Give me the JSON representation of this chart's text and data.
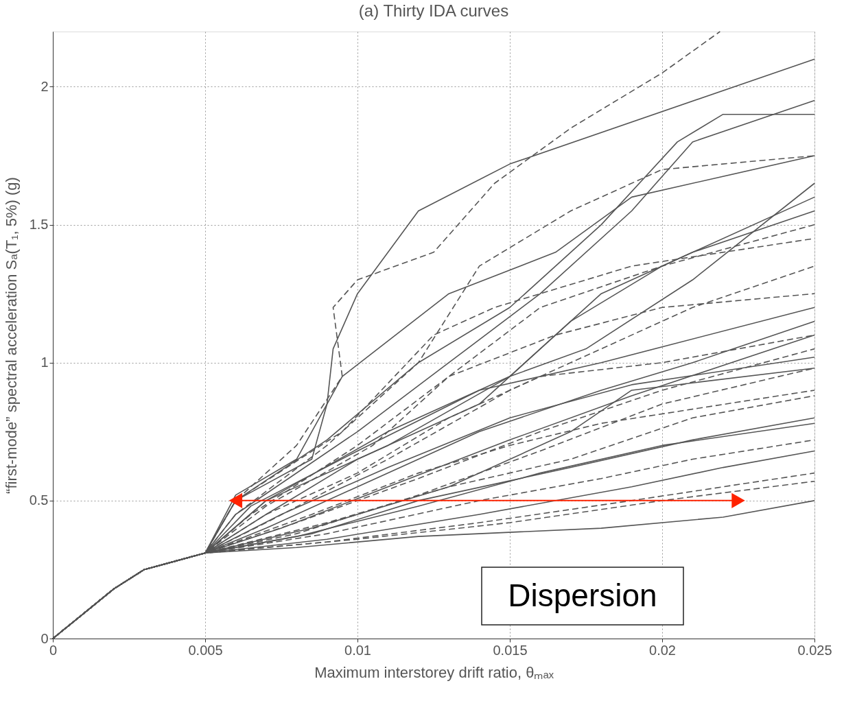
{
  "chart_data": {
    "type": "line",
    "title": "(a) Thirty IDA curves",
    "xlabel": "Maximum interstorey drift ratio, θₘₐₓ",
    "ylabel": "“first-mode” spectral acceleration Sₐ(T₁, 5%)  (g)",
    "xlim": [
      0,
      0.025
    ],
    "xticks": [
      0,
      0.005,
      0.01,
      0.015,
      0.02,
      0.025
    ],
    "ylim": [
      0,
      2.2
    ],
    "yticks": [
      0,
      0.5,
      1,
      1.5,
      2
    ],
    "grid": true,
    "annotations": [
      "Dispersion"
    ],
    "series": [
      {
        "color": "#555555",
        "line_style": "solid",
        "x": [
          0,
          0.001,
          0.002,
          0.003,
          0.004,
          0.005,
          0.006,
          0.0085,
          0.009,
          0.0092,
          0.01,
          0.012,
          0.015,
          0.025
        ],
        "values": [
          0,
          0.09,
          0.18,
          0.25,
          0.28,
          0.31,
          0.5,
          0.65,
          0.85,
          1.05,
          1.25,
          1.55,
          1.72,
          2.1
        ]
      },
      {
        "color": "#555555",
        "line_style": "dashed",
        "x": [
          0,
          0.001,
          0.002,
          0.003,
          0.004,
          0.005,
          0.006,
          0.008,
          0.0095,
          0.0092,
          0.01,
          0.0125,
          0.0145,
          0.017,
          0.02,
          0.0219
        ],
        "values": [
          0,
          0.09,
          0.18,
          0.25,
          0.28,
          0.31,
          0.5,
          0.7,
          0.95,
          1.2,
          1.3,
          1.4,
          1.65,
          1.85,
          2.05,
          2.2
        ]
      },
      {
        "color": "#555555",
        "line_style": "solid",
        "x": [
          0,
          0.001,
          0.002,
          0.003,
          0.004,
          0.005,
          0.006,
          0.01,
          0.013,
          0.016,
          0.019,
          0.021,
          0.025
        ],
        "values": [
          0,
          0.09,
          0.18,
          0.25,
          0.28,
          0.31,
          0.45,
          0.75,
          1.0,
          1.25,
          1.55,
          1.8,
          1.95
        ]
      },
      {
        "color": "#555555",
        "line_style": "solid",
        "x": [
          0,
          0.001,
          0.002,
          0.003,
          0.004,
          0.005,
          0.007,
          0.01,
          0.014,
          0.017,
          0.02,
          0.025
        ],
        "values": [
          0,
          0.09,
          0.18,
          0.25,
          0.28,
          0.31,
          0.45,
          0.65,
          0.85,
          1.15,
          1.35,
          1.6
        ]
      },
      {
        "color": "#555555",
        "line_style": "solid",
        "x": [
          0,
          0.001,
          0.002,
          0.003,
          0.004,
          0.005,
          0.007,
          0.011,
          0.015,
          0.018,
          0.021,
          0.025
        ],
        "values": [
          0,
          0.09,
          0.18,
          0.25,
          0.28,
          0.31,
          0.5,
          0.7,
          0.95,
          1.25,
          1.4,
          1.55
        ]
      },
      {
        "color": "#555555",
        "line_style": "dashed",
        "x": [
          0,
          0.001,
          0.002,
          0.003,
          0.004,
          0.005,
          0.006,
          0.009,
          0.012,
          0.014,
          0.017,
          0.02,
          0.025
        ],
        "values": [
          0,
          0.09,
          0.18,
          0.25,
          0.28,
          0.31,
          0.45,
          0.7,
          1.0,
          1.35,
          1.55,
          1.7,
          1.75
        ]
      },
      {
        "color": "#555555",
        "line_style": "dashed",
        "x": [
          0,
          0.001,
          0.002,
          0.003,
          0.004,
          0.005,
          0.0065,
          0.01,
          0.013,
          0.016,
          0.02,
          0.025
        ],
        "values": [
          0,
          0.09,
          0.18,
          0.25,
          0.28,
          0.31,
          0.45,
          0.7,
          0.95,
          1.2,
          1.35,
          1.5
        ]
      },
      {
        "color": "#555555",
        "line_style": "dashed",
        "x": [
          0,
          0.001,
          0.002,
          0.003,
          0.004,
          0.005,
          0.007,
          0.011,
          0.015,
          0.018,
          0.021,
          0.025
        ],
        "values": [
          0,
          0.09,
          0.18,
          0.25,
          0.28,
          0.31,
          0.42,
          0.65,
          0.9,
          1.05,
          1.2,
          1.35
        ]
      },
      {
        "color": "#555555",
        "line_style": "solid",
        "x": [
          0,
          0.001,
          0.002,
          0.003,
          0.004,
          0.005,
          0.007,
          0.01,
          0.014,
          0.018,
          0.021,
          0.025
        ],
        "values": [
          0,
          0.09,
          0.18,
          0.25,
          0.28,
          0.31,
          0.4,
          0.55,
          0.75,
          0.9,
          1.0,
          1.15
        ]
      },
      {
        "color": "#555555",
        "line_style": "solid",
        "x": [
          0,
          0.001,
          0.002,
          0.003,
          0.004,
          0.005,
          0.0075,
          0.011,
          0.015,
          0.019,
          0.025
        ],
        "values": [
          0,
          0.09,
          0.18,
          0.25,
          0.28,
          0.31,
          0.4,
          0.55,
          0.72,
          0.88,
          1.1
        ]
      },
      {
        "color": "#555555",
        "line_style": "dashed",
        "x": [
          0,
          0.001,
          0.002,
          0.003,
          0.004,
          0.005,
          0.008,
          0.012,
          0.016,
          0.02,
          0.025
        ],
        "values": [
          0,
          0.09,
          0.18,
          0.25,
          0.28,
          0.31,
          0.42,
          0.58,
          0.75,
          0.9,
          1.05
        ]
      },
      {
        "color": "#555555",
        "line_style": "dashed",
        "x": [
          0,
          0.001,
          0.002,
          0.003,
          0.004,
          0.005,
          0.008,
          0.012,
          0.016,
          0.02,
          0.025
        ],
        "values": [
          0,
          0.09,
          0.18,
          0.25,
          0.28,
          0.31,
          0.38,
          0.52,
          0.68,
          0.85,
          0.98
        ]
      },
      {
        "color": "#555555",
        "line_style": "solid",
        "x": [
          0,
          0.001,
          0.002,
          0.003,
          0.004,
          0.005,
          0.0085,
          0.013,
          0.017,
          0.019,
          0.025
        ],
        "values": [
          0,
          0.09,
          0.18,
          0.25,
          0.28,
          0.31,
          0.4,
          0.55,
          0.75,
          0.9,
          0.98
        ]
      },
      {
        "color": "#555555",
        "line_style": "dashed",
        "x": [
          0,
          0.001,
          0.002,
          0.003,
          0.004,
          0.005,
          0.009,
          0.013,
          0.017,
          0.021,
          0.025
        ],
        "values": [
          0,
          0.09,
          0.18,
          0.25,
          0.28,
          0.31,
          0.42,
          0.55,
          0.65,
          0.8,
          0.88
        ]
      },
      {
        "color": "#555555",
        "line_style": "solid",
        "x": [
          0,
          0.001,
          0.002,
          0.003,
          0.004,
          0.005,
          0.008,
          0.012,
          0.016,
          0.02,
          0.025
        ],
        "values": [
          0,
          0.09,
          0.18,
          0.25,
          0.28,
          0.31,
          0.37,
          0.48,
          0.6,
          0.7,
          0.78
        ]
      },
      {
        "color": "#555555",
        "line_style": "dashed",
        "x": [
          0,
          0.001,
          0.002,
          0.003,
          0.004,
          0.005,
          0.009,
          0.014,
          0.018,
          0.021,
          0.025
        ],
        "values": [
          0,
          0.09,
          0.18,
          0.25,
          0.28,
          0.31,
          0.38,
          0.5,
          0.58,
          0.65,
          0.72
        ]
      },
      {
        "color": "#555555",
        "line_style": "solid",
        "x": [
          0,
          0.001,
          0.002,
          0.003,
          0.004,
          0.005,
          0.009,
          0.014,
          0.019,
          0.022,
          0.025
        ],
        "values": [
          0,
          0.09,
          0.18,
          0.25,
          0.28,
          0.31,
          0.36,
          0.45,
          0.55,
          0.62,
          0.68
        ]
      },
      {
        "color": "#555555",
        "line_style": "dashed",
        "x": [
          0,
          0.001,
          0.002,
          0.003,
          0.004,
          0.005,
          0.009,
          0.014,
          0.019,
          0.022,
          0.025
        ],
        "values": [
          0,
          0.09,
          0.18,
          0.25,
          0.28,
          0.31,
          0.35,
          0.42,
          0.5,
          0.55,
          0.6
        ]
      },
      {
        "color": "#555555",
        "line_style": "dashed",
        "x": [
          0,
          0.001,
          0.002,
          0.003,
          0.004,
          0.005,
          0.01,
          0.015,
          0.02,
          0.025
        ],
        "values": [
          0,
          0.09,
          0.18,
          0.25,
          0.28,
          0.31,
          0.36,
          0.42,
          0.5,
          0.57
        ]
      },
      {
        "color": "#555555",
        "line_style": "solid",
        "x": [
          0,
          0.001,
          0.002,
          0.003,
          0.004,
          0.005,
          0.008,
          0.012,
          0.018,
          0.022,
          0.025
        ],
        "values": [
          0,
          0.09,
          0.18,
          0.25,
          0.28,
          0.31,
          0.33,
          0.37,
          0.4,
          0.44,
          0.5
        ]
      },
      {
        "color": "#555555",
        "line_style": "solid",
        "x": [
          0,
          0.001,
          0.002,
          0.003,
          0.004,
          0.005,
          0.006,
          0.009,
          0.012,
          0.015,
          0.018,
          0.0205,
          0.022,
          0.025
        ],
        "values": [
          0,
          0.09,
          0.18,
          0.25,
          0.28,
          0.31,
          0.5,
          0.72,
          1.0,
          1.2,
          1.5,
          1.8,
          1.9,
          1.9
        ]
      },
      {
        "color": "#555555",
        "line_style": "solid",
        "x": [
          0,
          0.001,
          0.002,
          0.003,
          0.004,
          0.005,
          0.007,
          0.011,
          0.015,
          0.0175,
          0.021,
          0.025
        ],
        "values": [
          0,
          0.09,
          0.18,
          0.25,
          0.28,
          0.31,
          0.5,
          0.75,
          0.95,
          1.05,
          1.3,
          1.65
        ]
      },
      {
        "color": "#555555",
        "line_style": "dashed",
        "x": [
          0,
          0.001,
          0.002,
          0.003,
          0.004,
          0.005,
          0.007,
          0.01,
          0.013,
          0.016,
          0.02,
          0.025
        ],
        "values": [
          0,
          0.09,
          0.18,
          0.25,
          0.28,
          0.31,
          0.45,
          0.6,
          0.8,
          0.95,
          1.0,
          1.1
        ]
      },
      {
        "color": "#555555",
        "line_style": "solid",
        "x": [
          0,
          0.001,
          0.002,
          0.003,
          0.004,
          0.005,
          0.0065,
          0.01,
          0.014,
          0.018,
          0.025
        ],
        "values": [
          0,
          0.09,
          0.18,
          0.25,
          0.28,
          0.31,
          0.48,
          0.68,
          0.9,
          1.0,
          1.2
        ]
      },
      {
        "color": "#555555",
        "line_style": "dashed",
        "x": [
          0,
          0.001,
          0.002,
          0.003,
          0.004,
          0.005,
          0.006,
          0.0095,
          0.0125,
          0.0145,
          0.019,
          0.025
        ],
        "values": [
          0,
          0.09,
          0.18,
          0.25,
          0.28,
          0.31,
          0.5,
          0.75,
          1.1,
          1.2,
          1.35,
          1.45
        ]
      },
      {
        "color": "#555555",
        "line_style": "solid",
        "x": [
          0,
          0.001,
          0.002,
          0.003,
          0.004,
          0.005,
          0.006,
          0.008,
          0.0095,
          0.013,
          0.0165,
          0.019,
          0.025
        ],
        "values": [
          0,
          0.09,
          0.18,
          0.25,
          0.28,
          0.31,
          0.52,
          0.65,
          0.95,
          1.25,
          1.4,
          1.6,
          1.75
        ]
      },
      {
        "color": "#555555",
        "line_style": "dashed",
        "x": [
          0,
          0.001,
          0.002,
          0.003,
          0.004,
          0.005,
          0.0085,
          0.012,
          0.015,
          0.018,
          0.025
        ],
        "values": [
          0,
          0.09,
          0.18,
          0.25,
          0.28,
          0.31,
          0.45,
          0.6,
          0.7,
          0.78,
          0.9
        ]
      },
      {
        "color": "#555555",
        "line_style": "solid",
        "x": [
          0,
          0.001,
          0.002,
          0.003,
          0.004,
          0.005,
          0.0085,
          0.012,
          0.017,
          0.021,
          0.025
        ],
        "values": [
          0,
          0.09,
          0.18,
          0.25,
          0.28,
          0.31,
          0.38,
          0.5,
          0.62,
          0.72,
          0.8
        ]
      },
      {
        "color": "#555555",
        "line_style": "dashed",
        "x": [
          0,
          0.001,
          0.002,
          0.003,
          0.004,
          0.005,
          0.007,
          0.0105,
          0.013,
          0.0165,
          0.02,
          0.025
        ],
        "values": [
          0,
          0.09,
          0.18,
          0.25,
          0.28,
          0.31,
          0.48,
          0.7,
          0.95,
          1.1,
          1.2,
          1.25
        ]
      },
      {
        "color": "#555555",
        "line_style": "solid",
        "x": [
          0,
          0.001,
          0.002,
          0.003,
          0.004,
          0.005,
          0.0075,
          0.011,
          0.015,
          0.019,
          0.025
        ],
        "values": [
          0,
          0.09,
          0.18,
          0.25,
          0.28,
          0.31,
          0.45,
          0.62,
          0.8,
          0.92,
          1.02
        ]
      },
      {
        "color": "#ff2200",
        "line_style": "solid",
        "marker": "triangle",
        "x": [
          0.006,
          0.0225
        ],
        "values": [
          0.5,
          0.5
        ]
      }
    ]
  }
}
